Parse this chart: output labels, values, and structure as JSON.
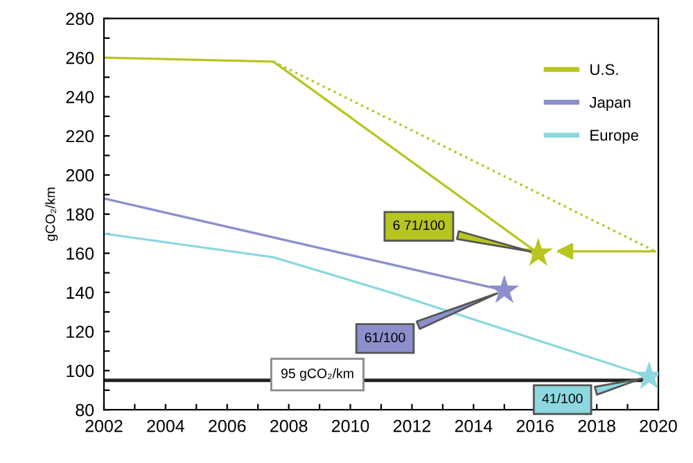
{
  "chart_data": {
    "type": "line",
    "ylabel": "gCO₂/km",
    "series": [
      {
        "name": "U.S.",
        "color": "#b8c520",
        "x": [
          2002,
          2007.5,
          2016.1
        ],
        "values": [
          260,
          258,
          160
        ]
      },
      {
        "name": "Japan",
        "color": "#8c8fcc",
        "x": [
          2002,
          2015
        ],
        "values": [
          188,
          141
        ]
      },
      {
        "name": "Europe",
        "color": "#8dd8e0",
        "x": [
          2002,
          2007.5,
          2011.3,
          2019.7
        ],
        "values": [
          170,
          158,
          140,
          97
        ]
      },
      {
        "color": "#b8c520",
        "line_style": "dotted",
        "x": [
          2007.5,
          2019.9
        ],
        "values": [
          258,
          161
        ]
      },
      {
        "type": "scatter",
        "marker": "star",
        "colors": [
          "#b8c520",
          "#8c8fcc",
          "#8dd8e0"
        ],
        "x": [
          2016.1,
          2015,
          2019.7
        ],
        "values": [
          160,
          141,
          97
        ]
      }
    ],
    "annotations": [
      {
        "text": "6 71/100",
        "x": 2016.1,
        "y": 160
      },
      {
        "text": "61/100",
        "x": 2015,
        "y": 141
      },
      {
        "text": "41/100",
        "x": 2019.7,
        "y": 97
      }
    ],
    "ref_lines": [
      {
        "axis": "y",
        "value": 95,
        "label": "95 gCO₂/km",
        "color": "#222222"
      }
    ],
    "xlim": [
      2002,
      2020
    ],
    "ylim": [
      80,
      280
    ],
    "xticks": [
      2002,
      {
        "value": 2003,
        "label": null
      },
      2004,
      {
        "value": 2005,
        "label": null
      },
      2006,
      {
        "value": 2007,
        "label": null
      },
      2008,
      {
        "value": 2009,
        "label": null
      },
      2010,
      {
        "value": 2011,
        "label": null
      },
      2012,
      {
        "value": 2013,
        "label": null
      },
      2014,
      {
        "value": 2015,
        "label": null
      },
      2016,
      {
        "value": 2017,
        "label": null
      },
      2018,
      {
        "value": 2019,
        "label": null
      },
      2020
    ],
    "yticks": [
      80,
      {
        "value": 90,
        "label": null
      },
      100,
      {
        "value": 110,
        "label": null
      },
      120,
      {
        "value": 130,
        "label": null
      },
      140,
      {
        "value": 150,
        "label": null
      },
      160,
      {
        "value": 170,
        "label": null
      },
      180,
      {
        "value": 190,
        "label": null
      },
      200,
      {
        "value": 210,
        "label": null
      },
      220,
      {
        "value": 230,
        "label": null
      },
      240,
      {
        "value": 250,
        "label": null
      },
      260,
      {
        "value": 270,
        "label": null
      },
      280
    ],
    "grid": false,
    "legend": "top right",
    "marker": "none"
  }
}
